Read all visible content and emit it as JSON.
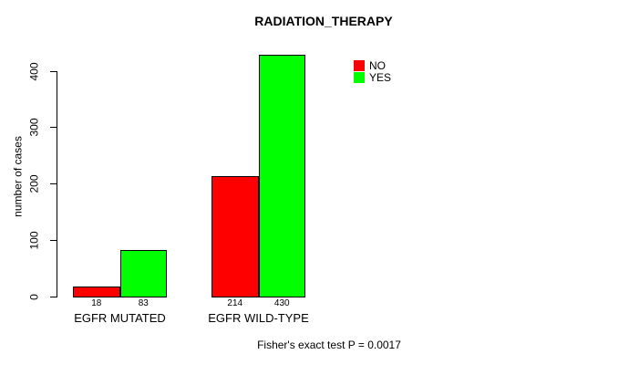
{
  "chart_data": {
    "type": "bar",
    "title": "RADIATION_THERAPY",
    "xlabel": "",
    "ylabel": "number of cases",
    "ylim": [
      0,
      430
    ],
    "yticks": [
      0,
      100,
      200,
      300,
      400
    ],
    "grid": false,
    "categories": [
      "EGFR MUTATED",
      "EGFR WILD-TYPE"
    ],
    "series": [
      {
        "name": "NO",
        "color": "#ff0000",
        "values": [
          18,
          214
        ]
      },
      {
        "name": "YES",
        "color": "#00ff00",
        "values": [
          83,
          430
        ]
      }
    ],
    "bar_value_labels": [
      [
        "18",
        "83"
      ],
      [
        "214",
        "430"
      ]
    ],
    "legend_position": "top-right",
    "annotation": "Fisher's exact test P = 0.0017"
  }
}
